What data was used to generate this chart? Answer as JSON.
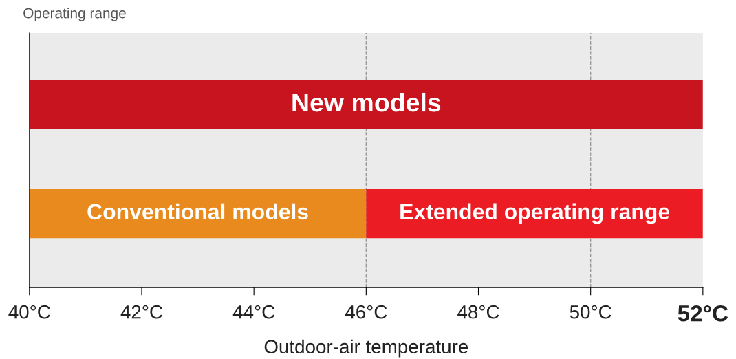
{
  "chart_data": {
    "type": "bar",
    "orientation": "horizontal",
    "title": "Operating range",
    "xlabel": "Outdoor-air temperature",
    "categories": [
      null,
      null
    ],
    "series": [
      {
        "name": "New models",
        "color": "#c8141e",
        "base": [
          40,
          null
        ],
        "values": [
          12,
          null
        ]
      },
      {
        "name": "Conventional models",
        "color": "#e88a1e",
        "base": [
          null,
          40
        ],
        "values": [
          null,
          6
        ]
      },
      {
        "name": "Extended operating range",
        "color": "#ec1c24",
        "base": [
          null,
          46
        ],
        "values": [
          null,
          6
        ]
      }
    ],
    "xlim": [
      40,
      52
    ],
    "xticks": [
      {
        "value": 40,
        "label": "40°C"
      },
      {
        "value": 42,
        "label": "42°C"
      },
      {
        "value": 44,
        "label": "44°C"
      },
      {
        "value": 46,
        "label": "46°C"
      },
      {
        "value": 48,
        "label": "48°C"
      },
      {
        "value": 50,
        "label": "50°C"
      },
      {
        "value": 52,
        "label": "52°C"
      }
    ],
    "ref_lines": [
      {
        "axis": "x",
        "value": 46,
        "color": "#999999",
        "line_style": "dashed"
      },
      {
        "axis": "x",
        "value": 50,
        "color": "#999999",
        "line_style": "dashed"
      }
    ],
    "grid": false,
    "legend": false
  }
}
